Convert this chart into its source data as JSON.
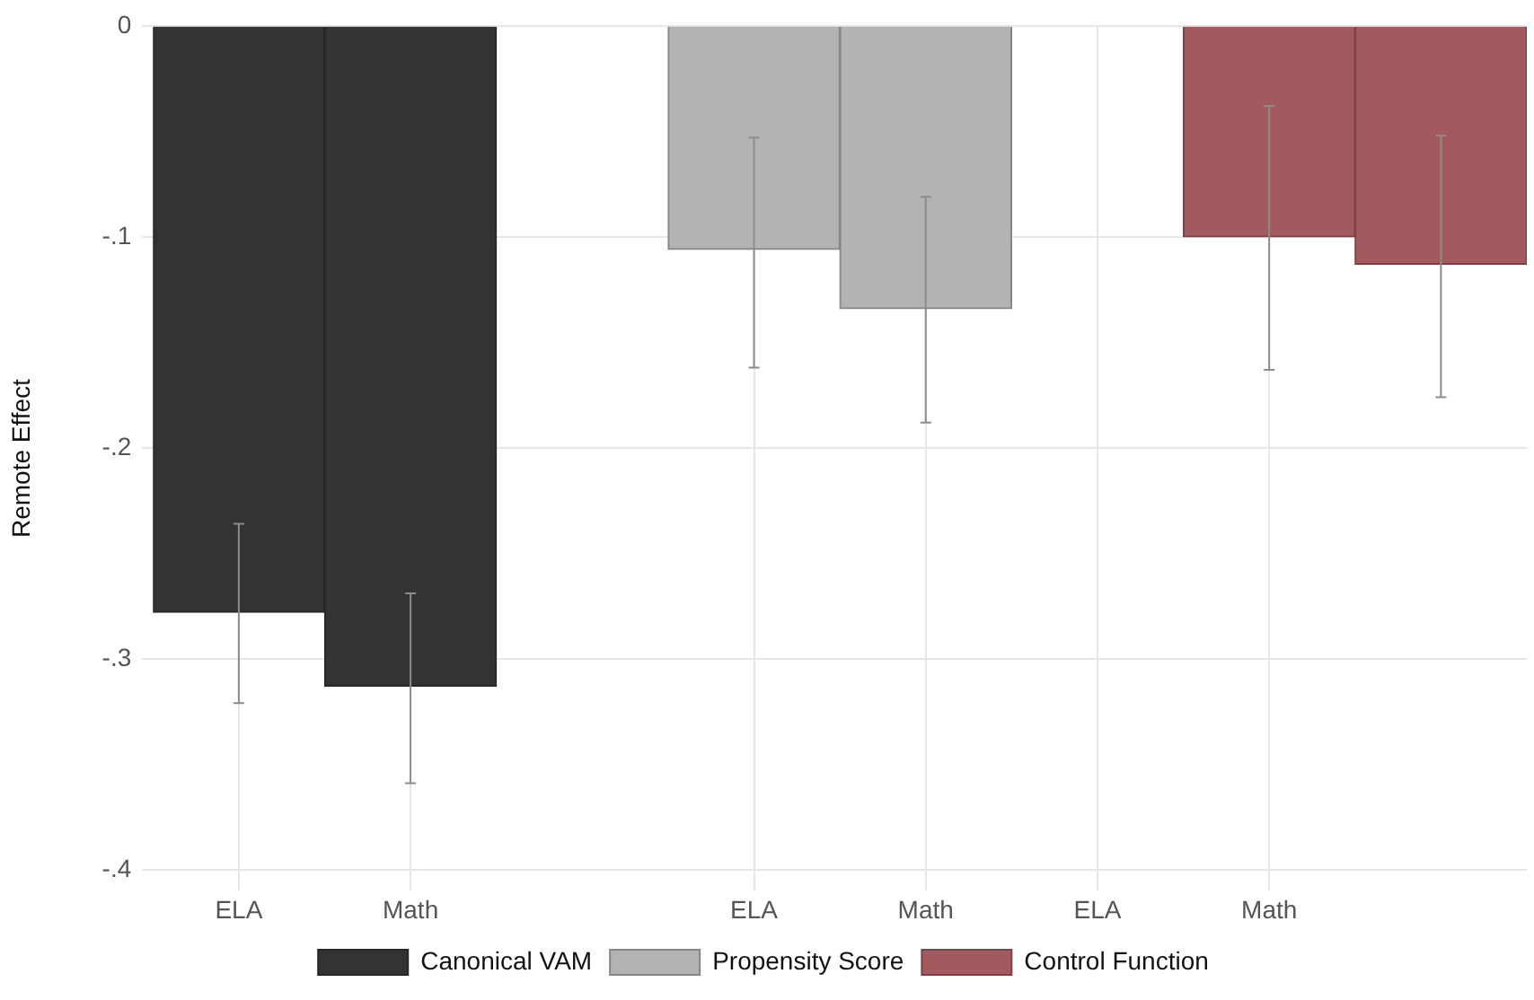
{
  "chart_data": {
    "type": "bar",
    "ylabel": "Remote Effect",
    "categories": [
      "ELA",
      "Math",
      null,
      "ELA",
      "Math",
      "ELA",
      "Math",
      null
    ],
    "ylim": [
      -0.41,
      0
    ],
    "yticks": [
      {
        "value": 0,
        "label": "0"
      },
      {
        "value": -0.1,
        "label": "-.1"
      },
      {
        "value": -0.2,
        "label": "-.2"
      },
      {
        "value": -0.3,
        "label": "-.3"
      },
      {
        "value": -0.4,
        "label": "-.4"
      }
    ],
    "series": [
      {
        "name": "Canonical VAM",
        "color": "#333333",
        "values": [
          -0.278,
          -0.313,
          null,
          null,
          null,
          null,
          null,
          null
        ],
        "errors": [
          [
            -0.321,
            -0.236
          ],
          [
            -0.359,
            -0.269
          ],
          null,
          null,
          null,
          null,
          null,
          null
        ]
      },
      {
        "name": "Propensity Score",
        "color": "#b3b3b3",
        "values": [
          null,
          null,
          null,
          -0.106,
          -0.134,
          null,
          null,
          null
        ],
        "errors": [
          null,
          null,
          null,
          [
            -0.162,
            -0.053
          ],
          [
            -0.188,
            -0.081
          ],
          null,
          null,
          null
        ]
      },
      {
        "name": "Control Function",
        "color": "#a35a5e",
        "values": [
          null,
          null,
          null,
          null,
          null,
          null,
          -0.1,
          -0.113
        ],
        "errors": [
          null,
          null,
          null,
          null,
          null,
          null,
          [
            -0.163,
            -0.038
          ],
          [
            -0.176,
            -0.052
          ]
        ]
      }
    ],
    "grid": true,
    "legend": "bottom"
  }
}
